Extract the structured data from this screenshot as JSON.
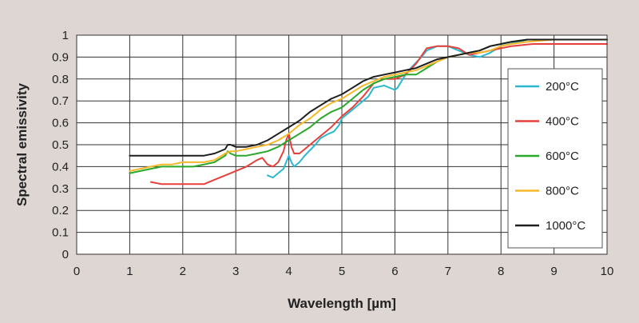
{
  "chart_data": {
    "type": "line",
    "title": "",
    "xlabel": "Wavelength [µm]",
    "ylabel": "Spectral emissivity",
    "xlim": [
      0,
      10
    ],
    "ylim": [
      0,
      1
    ],
    "xticks": [
      "0",
      "1",
      "2",
      "3",
      "4",
      "5",
      "6",
      "7",
      "8",
      "9",
      "10"
    ],
    "yticks": [
      "0",
      "0.1",
      "0.2",
      "0.3",
      "0.4",
      "0.5",
      "0.6",
      "0.7",
      "0.8",
      "0.9",
      "1"
    ],
    "grid": true,
    "legend_position": "right",
    "series": [
      {
        "name": "200°C",
        "color": "#2bb8cf",
        "x": [
          3.6,
          3.7,
          3.8,
          3.85,
          3.9,
          3.95,
          4.0,
          4.05,
          4.1,
          4.2,
          4.3,
          4.5,
          4.6,
          4.75,
          4.85,
          4.95,
          5.0,
          5.2,
          5.4,
          5.5,
          5.6,
          5.8,
          6.0,
          6.05,
          6.1,
          6.2,
          6.3,
          6.5,
          6.6,
          6.8,
          7.0,
          7.2,
          7.4,
          7.6,
          7.8,
          8.0,
          8.5,
          9.0,
          9.5,
          10.0
        ],
        "y": [
          0.36,
          0.35,
          0.37,
          0.38,
          0.39,
          0.42,
          0.45,
          0.42,
          0.4,
          0.42,
          0.45,
          0.5,
          0.53,
          0.55,
          0.56,
          0.59,
          0.62,
          0.66,
          0.7,
          0.72,
          0.76,
          0.77,
          0.75,
          0.76,
          0.78,
          0.82,
          0.85,
          0.9,
          0.93,
          0.95,
          0.95,
          0.93,
          0.91,
          0.9,
          0.92,
          0.95,
          0.98,
          0.98,
          0.98,
          0.98
        ]
      },
      {
        "name": "400°C",
        "color": "#e5403c",
        "x": [
          1.4,
          1.6,
          1.8,
          2.0,
          2.2,
          2.4,
          2.6,
          2.8,
          3.0,
          3.2,
          3.4,
          3.5,
          3.6,
          3.7,
          3.8,
          3.9,
          3.95,
          4.0,
          4.05,
          4.1,
          4.2,
          4.4,
          4.6,
          4.8,
          5.0,
          5.2,
          5.4,
          5.6,
          5.8,
          6.0,
          6.2,
          6.4,
          6.6,
          6.8,
          7.0,
          7.2,
          7.4,
          7.6,
          7.8,
          8.0,
          8.2,
          8.6,
          9.0,
          9.5,
          10.0
        ],
        "y": [
          0.33,
          0.32,
          0.32,
          0.32,
          0.32,
          0.32,
          0.34,
          0.36,
          0.38,
          0.4,
          0.43,
          0.44,
          0.41,
          0.4,
          0.42,
          0.47,
          0.52,
          0.55,
          0.49,
          0.46,
          0.46,
          0.5,
          0.54,
          0.58,
          0.63,
          0.67,
          0.72,
          0.78,
          0.8,
          0.8,
          0.82,
          0.87,
          0.94,
          0.95,
          0.95,
          0.94,
          0.91,
          0.92,
          0.93,
          0.94,
          0.95,
          0.96,
          0.96,
          0.96,
          0.96
        ]
      },
      {
        "name": "600°C",
        "color": "#2aa82a",
        "x": [
          1.0,
          1.2,
          1.4,
          1.6,
          1.8,
          2.0,
          2.2,
          2.4,
          2.6,
          2.8,
          2.85,
          2.9,
          3.0,
          3.2,
          3.4,
          3.6,
          3.8,
          4.0,
          4.2,
          4.4,
          4.6,
          4.8,
          5.0,
          5.2,
          5.4,
          5.6,
          5.8,
          6.0,
          6.2,
          6.4,
          6.6,
          6.8,
          7.0,
          7.2,
          7.4,
          7.6,
          7.8,
          8.0,
          8.2,
          8.5,
          9.0,
          9.5,
          10.0
        ],
        "y": [
          0.37,
          0.38,
          0.39,
          0.4,
          0.4,
          0.4,
          0.4,
          0.41,
          0.42,
          0.45,
          0.47,
          0.46,
          0.45,
          0.45,
          0.46,
          0.47,
          0.49,
          0.52,
          0.55,
          0.58,
          0.62,
          0.65,
          0.67,
          0.71,
          0.75,
          0.78,
          0.8,
          0.81,
          0.82,
          0.82,
          0.85,
          0.88,
          0.9,
          0.91,
          0.92,
          0.93,
          0.95,
          0.96,
          0.97,
          0.98,
          0.98,
          0.98,
          0.98
        ]
      },
      {
        "name": "800°C",
        "color": "#f4b82a",
        "x": [
          1.0,
          1.2,
          1.4,
          1.6,
          1.8,
          2.0,
          2.2,
          2.4,
          2.6,
          2.8,
          2.9,
          3.0,
          3.2,
          3.4,
          3.6,
          3.8,
          4.0,
          4.2,
          4.4,
          4.6,
          4.8,
          5.0,
          5.2,
          5.4,
          5.6,
          5.8,
          6.0,
          6.2,
          6.4,
          6.6,
          6.8,
          7.0,
          7.2,
          7.4,
          7.6,
          7.8,
          8.0,
          8.2,
          8.5,
          9.0,
          9.5,
          10.0
        ],
        "y": [
          0.38,
          0.39,
          0.4,
          0.41,
          0.41,
          0.42,
          0.42,
          0.42,
          0.43,
          0.46,
          0.47,
          0.47,
          0.48,
          0.49,
          0.5,
          0.52,
          0.55,
          0.59,
          0.62,
          0.66,
          0.69,
          0.71,
          0.74,
          0.77,
          0.79,
          0.81,
          0.82,
          0.83,
          0.84,
          0.86,
          0.88,
          0.9,
          0.91,
          0.92,
          0.92,
          0.93,
          0.95,
          0.96,
          0.97,
          0.98,
          0.98,
          0.98
        ]
      },
      {
        "name": "1000°C",
        "color": "#1e1e1e",
        "x": [
          1.0,
          1.2,
          1.4,
          1.6,
          1.8,
          2.0,
          2.2,
          2.4,
          2.6,
          2.8,
          2.85,
          2.9,
          3.0,
          3.2,
          3.4,
          3.6,
          3.8,
          4.0,
          4.2,
          4.4,
          4.6,
          4.8,
          5.0,
          5.2,
          5.4,
          5.6,
          5.8,
          6.0,
          6.2,
          6.4,
          6.6,
          6.8,
          7.0,
          7.2,
          7.4,
          7.6,
          7.8,
          8.0,
          8.2,
          8.5,
          9.0,
          9.5,
          10.0
        ],
        "y": [
          0.45,
          0.45,
          0.45,
          0.45,
          0.45,
          0.45,
          0.45,
          0.45,
          0.46,
          0.48,
          0.5,
          0.5,
          0.49,
          0.49,
          0.5,
          0.52,
          0.55,
          0.58,
          0.61,
          0.65,
          0.68,
          0.71,
          0.73,
          0.76,
          0.79,
          0.81,
          0.82,
          0.83,
          0.84,
          0.85,
          0.87,
          0.89,
          0.9,
          0.91,
          0.92,
          0.93,
          0.95,
          0.96,
          0.97,
          0.98,
          0.98,
          0.98,
          0.98
        ]
      }
    ]
  }
}
